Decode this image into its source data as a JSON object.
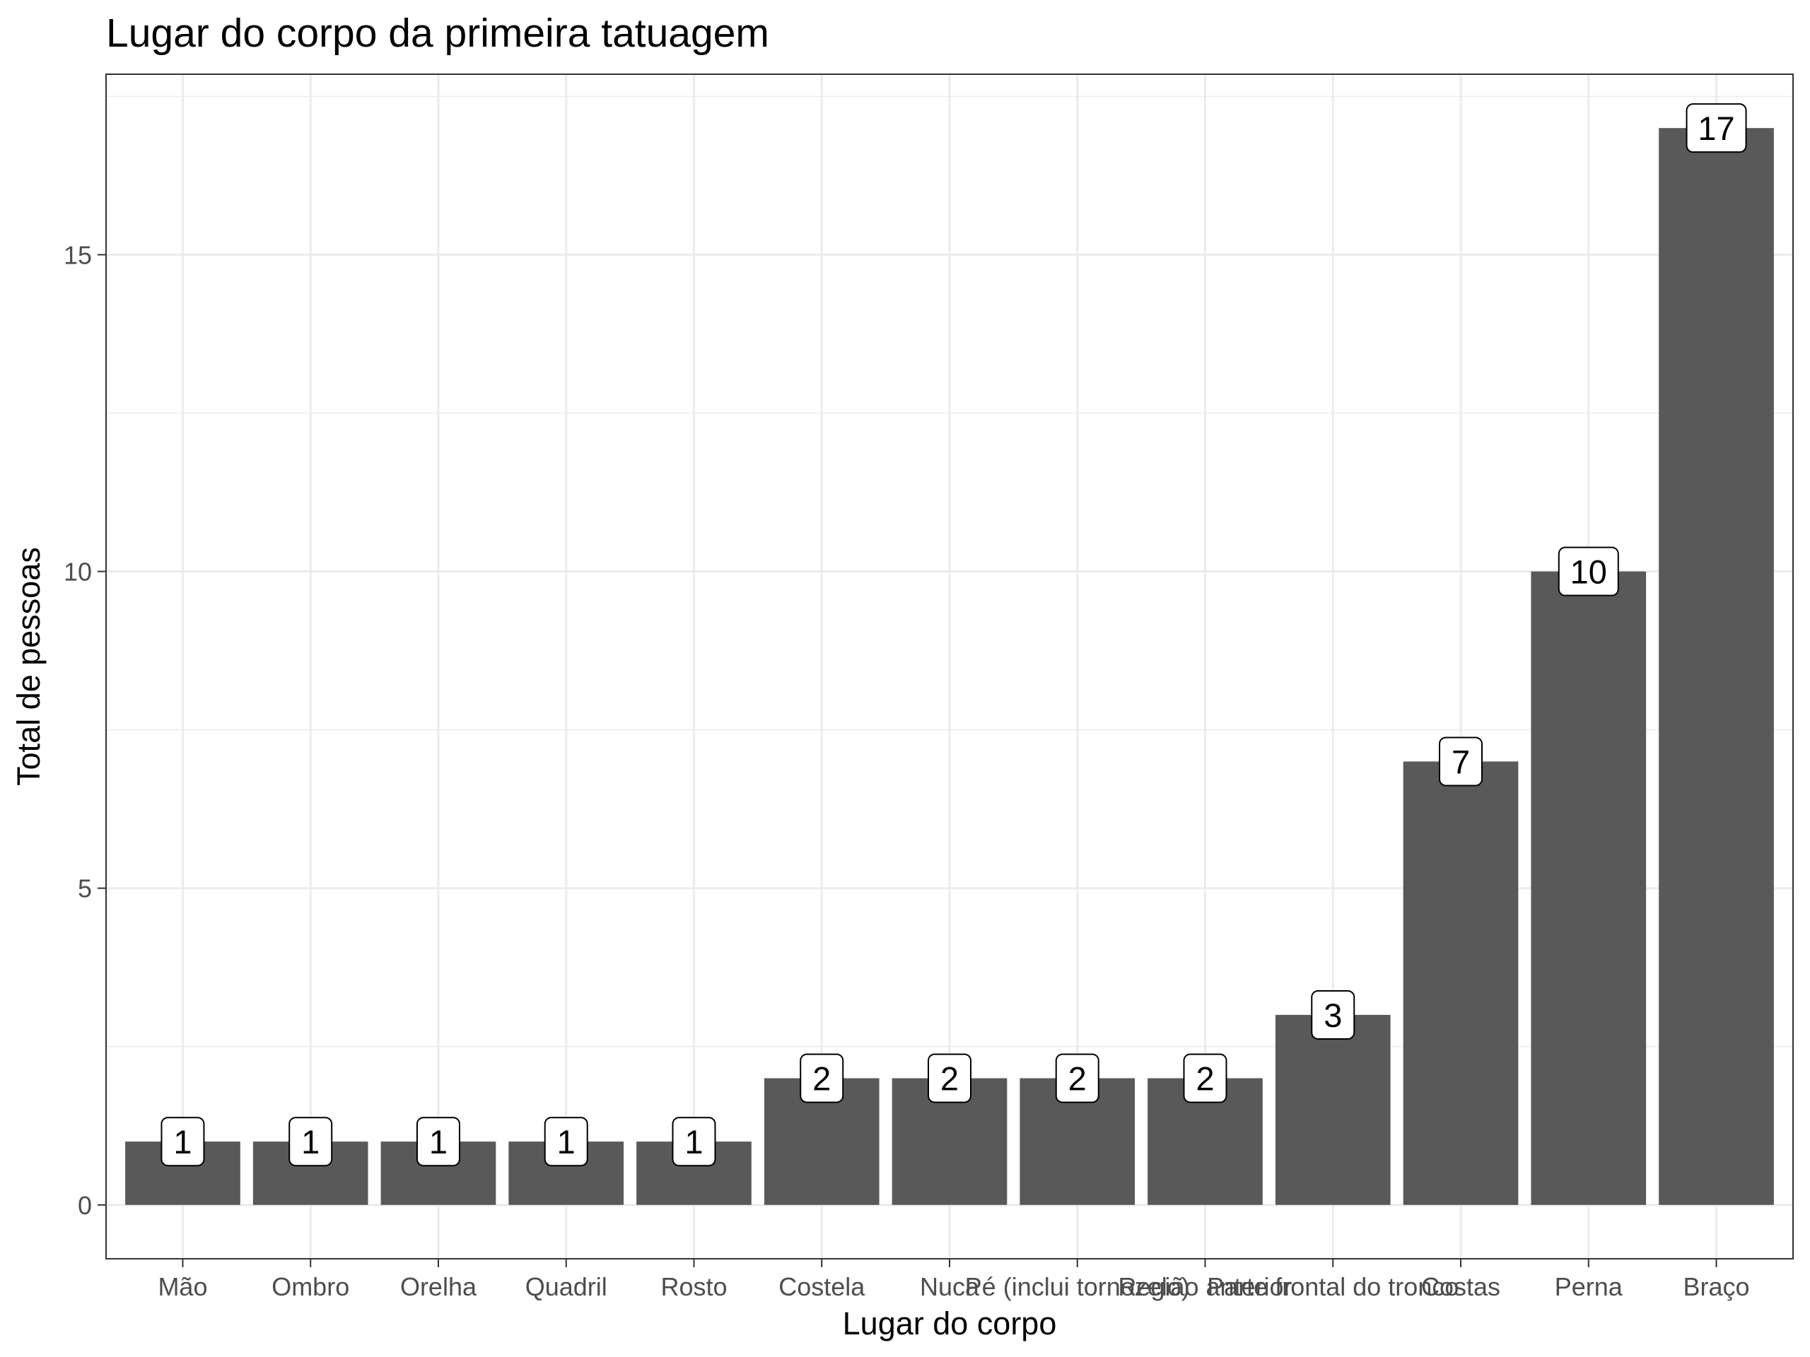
{
  "chart_data": {
    "type": "bar",
    "title": "Lugar do corpo da primeira tatuagem",
    "xlabel": "Lugar do corpo",
    "ylabel": "Total de pessoas",
    "categories": [
      "Mão",
      "Ombro",
      "Orelha",
      "Quadril",
      "Rosto",
      "Costela",
      "Nuca",
      "Pé (inclui tornozelo)",
      "Região anterior",
      "Parte frontal do tronco",
      "Costas",
      "Perna",
      "Braço"
    ],
    "values": [
      1,
      1,
      1,
      1,
      1,
      2,
      2,
      2,
      2,
      3,
      7,
      10,
      17
    ],
    "data_labels": [
      "1",
      "1",
      "1",
      "1",
      "1",
      "2",
      "2",
      "2",
      "2",
      "3",
      "7",
      "10",
      "17"
    ],
    "ylim": [
      -0.85,
      17.85
    ],
    "yticks": [
      0,
      5,
      10,
      15
    ],
    "ytick_labels": [
      "0",
      "5",
      "10",
      "15"
    ],
    "grid": true,
    "legend": "none",
    "colors": {
      "bar": "#595959",
      "grid": "#ebebeb",
      "panel_border": "#333333",
      "label_fill": "#ffffff"
    }
  }
}
